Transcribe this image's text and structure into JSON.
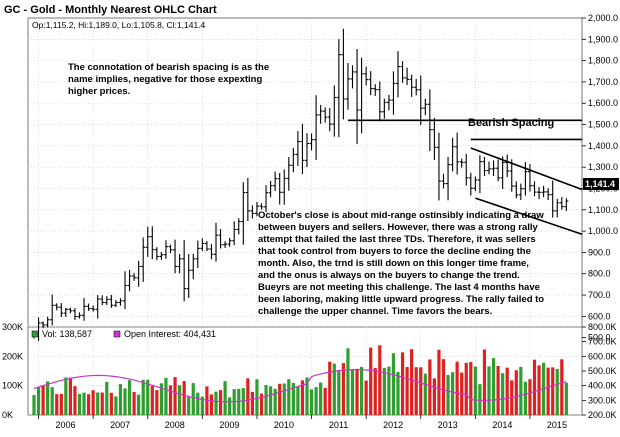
{
  "chart_data": {
    "type": "ohlc",
    "title": "GC - Gold - Monthly Nearest OHLC Chart",
    "ohlc_readout": "Op:1,115.2, Hi:1,189.0, Lo:1,105.8, Cl:1,141.4",
    "last_price_label": "1,141.4",
    "price_ylim": [
      550,
      2000
    ],
    "price_ticks": [
      "2,000.0",
      "1,900.0",
      "1,800.0",
      "1,700.0",
      "1,600.0",
      "1,500.0",
      "1,400.0",
      "1,300.0",
      "1,200.0",
      "1,100.0",
      "1,000.0",
      "900.0",
      "800.0",
      "700.0",
      "600.0",
      "500.0"
    ],
    "volume_ylim": [
      0,
      300000
    ],
    "volume_left_ticks": [
      "300K",
      "200K",
      "100K",
      "0K"
    ],
    "oi_right_ticks": [
      "800.0K",
      "700.0K",
      "600.0K",
      "500.0K",
      "400.0K",
      "300.0K",
      "200.0K"
    ],
    "x_labels": [
      "2006",
      "2007",
      "2008",
      "2009",
      "2010",
      "2011",
      "2012",
      "2013",
      "2014",
      "2015"
    ],
    "colors": {
      "bars": "#000000",
      "volume_up": "#2e9e2e",
      "volume_down": "#e02020",
      "open_interest": "#cc33cc",
      "grid": "#c8c8c8",
      "last_box": "#000000"
    },
    "annotations": {
      "top_left": [
        "The connotation of bearish spacing is as the",
        "name implies, negative for those expexting",
        "higher prices."
      ],
      "bearish_spacing_label": "Bearish Spacing",
      "commentary": [
        "October's close is about mid-range ostinsibly indicating a draw",
        "between buyers and sellers.  However, there was a strong rally",
        "attempt that failed the last three TDs.  Therefore, it was sellers",
        "that took control from buyers to force the decline ending the",
        "month.  Also, the trnd is still down on this longer time frame,",
        "and the onus is always on the buyers to change the trend.",
        "Bueyrs are not meeting this challenge.  The last 4 months have",
        "been laboring, making little upward progress.  The rally failed to",
        "challenge the upper channel.  Time favors the bears."
      ]
    },
    "indicator_legend": {
      "volume_label": "Vol: 138,587",
      "open_interest_label": "Open Interest: 404,431"
    },
    "price_series": {
      "start": "2005-12",
      "interval": "monthly",
      "closes": [
        517,
        569,
        560,
        584,
        652,
        643,
        615,
        633,
        626,
        599,
        605,
        647,
        636,
        633,
        681,
        665,
        680,
        652,
        665,
        673,
        745,
        789,
        781,
        834,
        924,
        974,
        913,
        881,
        889,
        927,
        912,
        834,
        870,
        730,
        816,
        870,
        919,
        942,
        916,
        891,
        981,
        936,
        939,
        955,
        1008,
        1045,
        1181,
        1095,
        1083,
        1117,
        1114,
        1180,
        1213,
        1246,
        1182,
        1247,
        1309,
        1360,
        1420,
        1332,
        1411,
        1429,
        1545,
        1563,
        1535,
        1502,
        1627,
        1828,
        1620,
        1714,
        1747,
        1568,
        1738,
        1711,
        1669,
        1664,
        1560,
        1604,
        1615,
        1693,
        1772,
        1719,
        1712,
        1675,
        1663,
        1577,
        1595,
        1476,
        1393,
        1235,
        1223,
        1312,
        1396,
        1325,
        1323,
        1250,
        1201,
        1240,
        1326,
        1284,
        1292,
        1295,
        1250,
        1322,
        1282,
        1211,
        1170,
        1199,
        1279,
        1213,
        1183,
        1182,
        1184,
        1171,
        1095,
        1133,
        1115,
        1141
      ]
    },
    "channel_lines": [
      {
        "from": [
          "2011-09",
          1520
        ],
        "to": [
          "2016-01",
          1520
        ]
      },
      {
        "from": [
          "2013-12",
          1430
        ],
        "to": [
          "2016-01",
          1430
        ]
      },
      {
        "from": [
          "2013-12",
          1390
        ],
        "to": [
          "2016-01",
          1195
        ]
      },
      {
        "from": [
          "2014-01",
          1155
        ],
        "to": [
          "2016-01",
          985
        ]
      }
    ]
  }
}
